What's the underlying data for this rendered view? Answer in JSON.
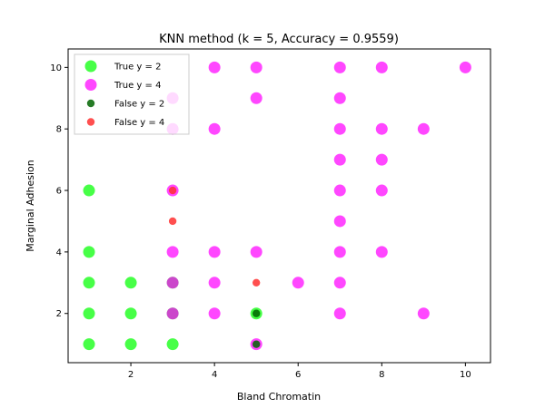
{
  "chart_data": {
    "type": "scatter",
    "title": "KNN method (k = 5, Accuracy = 0.9559)",
    "xlabel": "Bland Chromatin",
    "ylabel": "Marginal Adhesion",
    "xlim": [
      0.5,
      10.6
    ],
    "ylim": [
      0.4,
      10.6
    ],
    "xticks": [
      2,
      4,
      6,
      8,
      10
    ],
    "yticks": [
      2,
      4,
      6,
      8,
      10
    ],
    "grid": false,
    "legend_position": "upper-left",
    "series": [
      {
        "name": "True y = 2",
        "color": "#00ff00",
        "marker": "large",
        "points": [
          [
            1,
            1
          ],
          [
            1,
            2
          ],
          [
            1,
            3
          ],
          [
            1,
            4
          ],
          [
            1,
            6
          ],
          [
            2,
            1
          ],
          [
            2,
            2
          ],
          [
            2,
            3
          ],
          [
            3,
            1
          ],
          [
            3,
            2
          ],
          [
            3,
            3
          ],
          [
            5,
            2
          ]
        ]
      },
      {
        "name": "True y = 4",
        "color": "#ff00ff",
        "marker": "large",
        "points": [
          [
            3,
            2
          ],
          [
            3,
            3
          ],
          [
            3,
            4
          ],
          [
            3,
            6
          ],
          [
            3,
            8
          ],
          [
            3,
            9
          ],
          [
            4,
            2
          ],
          [
            4,
            3
          ],
          [
            4,
            4
          ],
          [
            4,
            8
          ],
          [
            4,
            10
          ],
          [
            5,
            1
          ],
          [
            5,
            4
          ],
          [
            5,
            9
          ],
          [
            5,
            10
          ],
          [
            6,
            3
          ],
          [
            7,
            2
          ],
          [
            7,
            3
          ],
          [
            7,
            4
          ],
          [
            7,
            5
          ],
          [
            7,
            6
          ],
          [
            7,
            7
          ],
          [
            7,
            8
          ],
          [
            7,
            9
          ],
          [
            7,
            10
          ],
          [
            8,
            4
          ],
          [
            8,
            6
          ],
          [
            8,
            7
          ],
          [
            8,
            8
          ],
          [
            8,
            10
          ],
          [
            9,
            2
          ],
          [
            9,
            8
          ],
          [
            10,
            10
          ]
        ]
      },
      {
        "name": "False y = 2",
        "color": "#006400",
        "marker": "small",
        "points": [
          [
            5,
            1
          ],
          [
            5,
            2
          ]
        ]
      },
      {
        "name": "False y = 4",
        "color": "#ff3030",
        "marker": "small",
        "points": [
          [
            3,
            5
          ],
          [
            3,
            6
          ],
          [
            5,
            3
          ]
        ]
      }
    ]
  }
}
